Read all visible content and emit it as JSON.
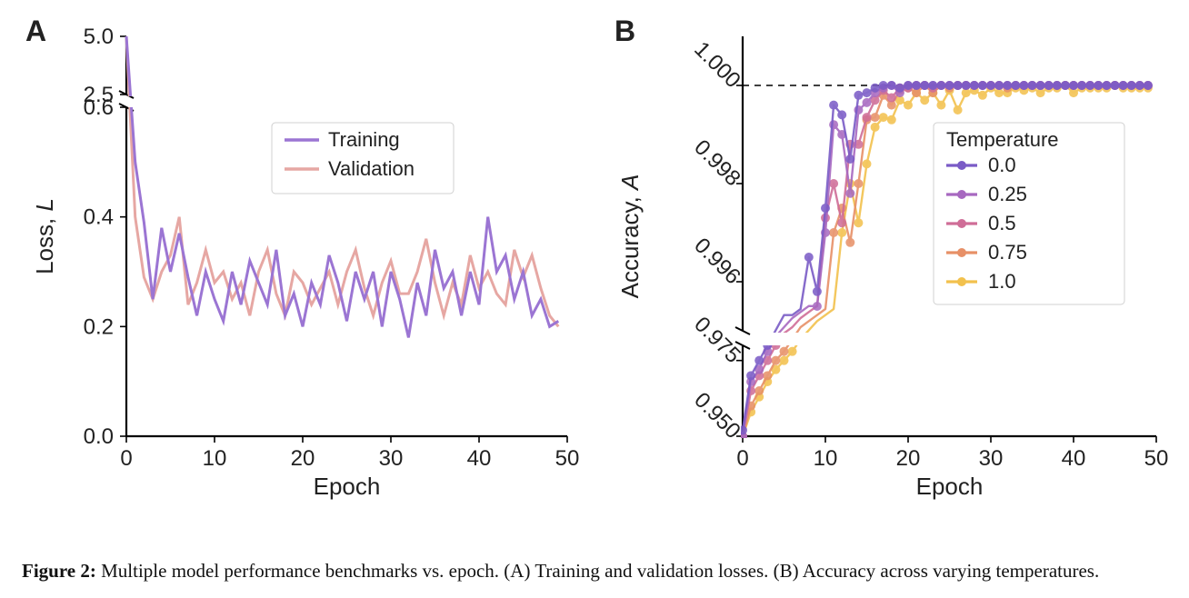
{
  "figure": {
    "caption_label": "Figure 2:",
    "caption_text": " Multiple model performance benchmarks vs. epoch. (A) Training and validation losses. (B) Accuracy across varying temperatures.",
    "background_color": "#ffffff"
  },
  "panelA": {
    "label": "A",
    "type": "line",
    "xlabel": "Epoch",
    "ylabel": "Loss, L",
    "xlim": [
      0,
      50
    ],
    "xtick_step": 10,
    "xticks": [
      0,
      10,
      20,
      30,
      40,
      50
    ],
    "lower_ylim": [
      0.0,
      0.6
    ],
    "lower_yticks": [
      0.0,
      0.2,
      0.4,
      0.6
    ],
    "upper_ylim": [
      2.5,
      5.0
    ],
    "upper_yticks": [
      2.5,
      5.0
    ],
    "axis_break": true,
    "label_fontsize": 26,
    "tick_fontsize": 24,
    "line_width": 3,
    "grid": false,
    "colors": {
      "training": "#9b75d3",
      "validation": "#e6a7a3"
    },
    "legend": {
      "title": null,
      "items": [
        {
          "key": "training",
          "label": "Training"
        },
        {
          "key": "validation",
          "label": "Validation"
        }
      ],
      "box_border_color": "#d0d0d0",
      "box_fill": "#ffffff",
      "font_size": 22
    },
    "series": {
      "training": {
        "x": [
          0,
          1,
          2,
          3,
          4,
          5,
          6,
          7,
          8,
          9,
          10,
          11,
          12,
          13,
          14,
          15,
          16,
          17,
          18,
          19,
          20,
          21,
          22,
          23,
          24,
          25,
          26,
          27,
          28,
          29,
          30,
          31,
          32,
          33,
          34,
          35,
          36,
          37,
          38,
          39,
          40,
          41,
          42,
          43,
          44,
          45,
          46,
          47,
          48,
          49
        ],
        "y": [
          5.0,
          0.5,
          0.39,
          0.25,
          0.38,
          0.3,
          0.37,
          0.29,
          0.22,
          0.3,
          0.25,
          0.21,
          0.3,
          0.24,
          0.32,
          0.28,
          0.24,
          0.34,
          0.22,
          0.26,
          0.2,
          0.28,
          0.24,
          0.33,
          0.28,
          0.21,
          0.3,
          0.25,
          0.3,
          0.2,
          0.3,
          0.25,
          0.18,
          0.28,
          0.22,
          0.34,
          0.27,
          0.3,
          0.22,
          0.3,
          0.24,
          0.4,
          0.3,
          0.33,
          0.25,
          0.3,
          0.22,
          0.25,
          0.2,
          0.21
        ]
      },
      "validation": {
        "x": [
          0,
          1,
          2,
          3,
          4,
          5,
          6,
          7,
          8,
          9,
          10,
          11,
          12,
          13,
          14,
          15,
          16,
          17,
          18,
          19,
          20,
          21,
          22,
          23,
          24,
          25,
          26,
          27,
          28,
          29,
          30,
          31,
          32,
          33,
          34,
          35,
          36,
          37,
          38,
          39,
          40,
          41,
          42,
          43,
          44,
          45,
          46,
          47,
          48,
          49
        ],
        "y": [
          5.0,
          0.4,
          0.29,
          0.25,
          0.3,
          0.33,
          0.4,
          0.24,
          0.28,
          0.34,
          0.28,
          0.3,
          0.25,
          0.28,
          0.22,
          0.3,
          0.34,
          0.26,
          0.22,
          0.3,
          0.28,
          0.24,
          0.27,
          0.3,
          0.24,
          0.3,
          0.34,
          0.27,
          0.22,
          0.28,
          0.32,
          0.26,
          0.26,
          0.3,
          0.36,
          0.28,
          0.22,
          0.28,
          0.24,
          0.33,
          0.27,
          0.3,
          0.26,
          0.24,
          0.34,
          0.29,
          0.33,
          0.27,
          0.22,
          0.2
        ]
      }
    }
  },
  "panelB": {
    "label": "B",
    "type": "line",
    "xlabel": "Epoch",
    "ylabel": "Accuracy, A",
    "xlim": [
      0,
      50
    ],
    "xtick_step": 10,
    "xticks": [
      0,
      10,
      20,
      30,
      40,
      50
    ],
    "lower_ylim": [
      0.95,
      0.98
    ],
    "lower_yticks": [
      0.95,
      0.975
    ],
    "upper_ylim": [
      0.995,
      1.001
    ],
    "upper_yticks": [
      0.996,
      0.998,
      1.0
    ],
    "axis_break": true,
    "reference_line_y": 1.0,
    "label_fontsize": 26,
    "tick_fontsize": 24,
    "tick_label_rotation_deg": 45,
    "line_width": 2.4,
    "marker_size": 5,
    "grid": false,
    "colors": {
      "t0": "#7a5bc6",
      "t025": "#a768c0",
      "t05": "#cf6d97",
      "t075": "#e79067",
      "t1": "#f2c14d"
    },
    "series_opacity": 0.9,
    "legend": {
      "title": "Temperature",
      "items": [
        {
          "key": "t0",
          "label": "0.0"
        },
        {
          "key": "t025",
          "label": "0.25"
        },
        {
          "key": "t05",
          "label": "0.5"
        },
        {
          "key": "t075",
          "label": "0.75"
        },
        {
          "key": "t1",
          "label": "1.0"
        }
      ],
      "box_border_color": "#d0d0d0",
      "box_fill": "#ffffff",
      "font_size": 22
    },
    "epochs": [
      0,
      1,
      2,
      3,
      4,
      5,
      6,
      7,
      8,
      9,
      10,
      11,
      12,
      13,
      14,
      15,
      16,
      17,
      18,
      19,
      20,
      21,
      22,
      23,
      24,
      25,
      26,
      27,
      28,
      29,
      30,
      31,
      32,
      33,
      34,
      35,
      36,
      37,
      38,
      39,
      40,
      41,
      42,
      43,
      44,
      45,
      46,
      47,
      48,
      49
    ],
    "series": {
      "t0": [
        0.952,
        0.97,
        0.975,
        0.98,
        0.985,
        0.99,
        0.99,
        0.992,
        0.9965,
        0.9958,
        0.9975,
        0.9996,
        0.9994,
        0.9985,
        0.9998,
        0.99985,
        0.99995,
        1.0,
        1.0,
        0.99995,
        1.0,
        1.0,
        1.0,
        1.0,
        1.0,
        1.0,
        1.0,
        1.0,
        1.0,
        1.0,
        1.0,
        1.0,
        1.0,
        1.0,
        1.0,
        1.0,
        1.0,
        1.0,
        1.0,
        1.0,
        1.0,
        1.0,
        1.0,
        1.0,
        1.0,
        1.0,
        1.0,
        1.0,
        1.0,
        1.0
      ],
      "t025": [
        0.95,
        0.968,
        0.972,
        0.978,
        0.983,
        0.986,
        0.989,
        0.991,
        0.993,
        0.9955,
        0.997,
        0.9992,
        0.999,
        0.9978,
        0.9995,
        0.99965,
        0.99985,
        0.99995,
        1.0,
        0.99985,
        1.0,
        1.0,
        1.0,
        1.0,
        1.0,
        1.0,
        1.0,
        1.0,
        1.0,
        1.0,
        1.0,
        1.0,
        1.0,
        1.0,
        1.0,
        1.0,
        1.0,
        1.0,
        1.0,
        1.0,
        1.0,
        1.0,
        1.0,
        1.0,
        1.0,
        1.0,
        1.0,
        1.0,
        1.0,
        1.0
      ],
      "t05": [
        0.95,
        0.965,
        0.97,
        0.975,
        0.98,
        0.984,
        0.986,
        0.989,
        0.991,
        0.993,
        0.9973,
        0.998,
        0.9972,
        0.9988,
        0.9988,
        0.99935,
        0.9997,
        0.9999,
        0.99975,
        0.99995,
        0.99995,
        1.0,
        1.0,
        0.99995,
        1.0,
        1.0,
        1.0,
        1.0,
        1.0,
        1.0,
        1.0,
        1.0,
        1.0,
        1.0,
        1.0,
        1.0,
        1.0,
        1.0,
        1.0,
        1.0,
        1.0,
        1.0,
        1.0,
        1.0,
        1.0,
        1.0,
        1.0,
        1.0,
        1.0,
        1.0
      ],
      "t075": [
        0.95,
        0.96,
        0.965,
        0.97,
        0.975,
        0.978,
        0.982,
        0.986,
        0.988,
        0.99,
        0.992,
        0.997,
        0.9975,
        0.9968,
        0.998,
        0.9993,
        0.99935,
        0.9998,
        0.9996,
        0.9999,
        0.99995,
        0.99985,
        1.0,
        0.99985,
        1.0,
        0.99995,
        1.0,
        1.0,
        1.0,
        1.0,
        1.0,
        1.0,
        0.99995,
        1.0,
        1.0,
        1.0,
        1.0,
        1.0,
        1.0,
        1.0,
        1.0,
        1.0,
        1.0,
        1.0,
        1.0,
        1.0,
        1.0,
        1.0,
        1.0,
        1.0
      ],
      "t1": [
        0.95,
        0.958,
        0.963,
        0.968,
        0.972,
        0.975,
        0.978,
        0.982,
        0.985,
        0.988,
        0.99,
        0.992,
        0.997,
        0.998,
        0.9972,
        0.9984,
        0.99915,
        0.99935,
        0.9993,
        0.9997,
        0.9996,
        0.99985,
        0.9997,
        0.99985,
        0.9996,
        0.9999,
        0.9995,
        0.99985,
        0.9999,
        0.9998,
        0.99995,
        0.99985,
        0.99985,
        0.99995,
        0.9999,
        0.99995,
        0.99985,
        0.99995,
        0.99995,
        1.0,
        0.99985,
        0.99995,
        0.99995,
        0.99995,
        0.99995,
        1.0,
        0.99995,
        0.99995,
        0.99995,
        0.99995
      ]
    }
  }
}
